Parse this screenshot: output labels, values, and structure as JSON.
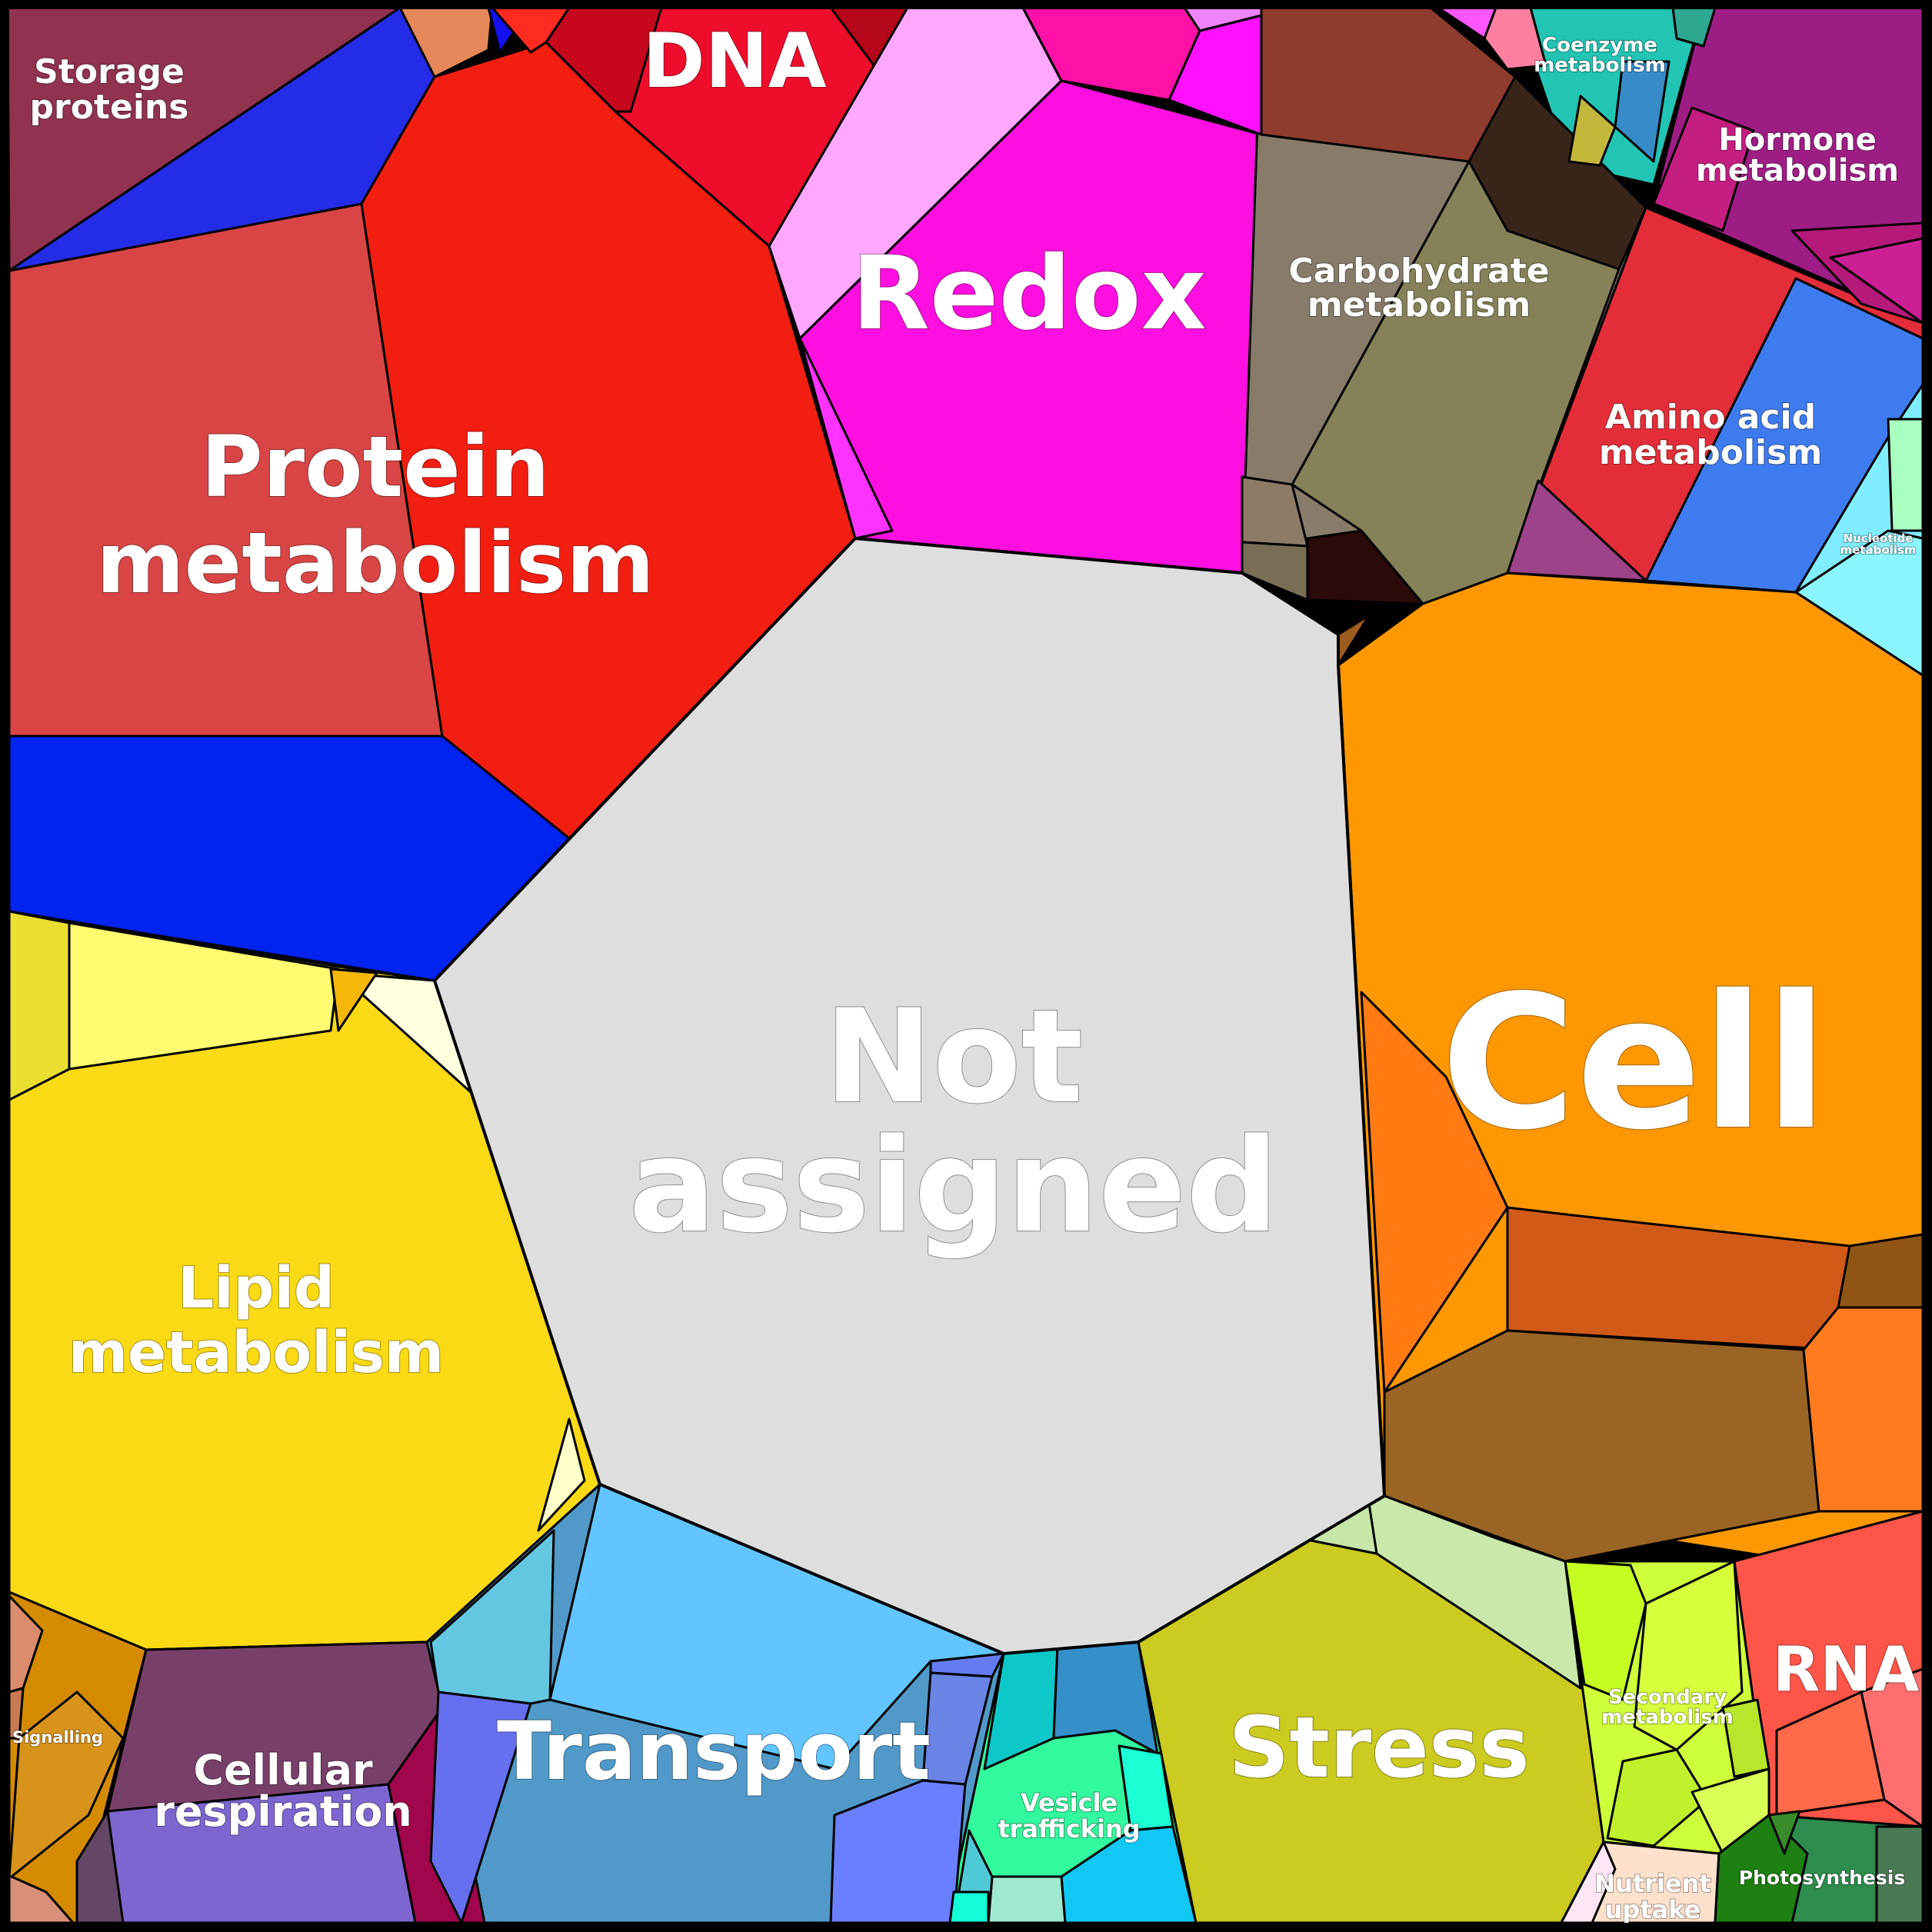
{
  "diagram": {
    "type": "voronoi-treemap",
    "categories": [
      {
        "id": "storage",
        "lines": [
          "Storage",
          "proteins"
        ],
        "color": "#91324F"
      },
      {
        "id": "protein",
        "lines": [
          "Protein",
          "metabolism"
        ],
        "color": "#D94545"
      },
      {
        "id": "dna",
        "lines": [
          "DNA"
        ],
        "color": "#EE0D2B"
      },
      {
        "id": "redox",
        "lines": [
          "Redox"
        ],
        "color": "#FF0FE0"
      },
      {
        "id": "carb",
        "lines": [
          "Carbohydrate",
          "metabolism"
        ],
        "color": "#877B6A"
      },
      {
        "id": "coenzyme",
        "lines": [
          "Coenzyme",
          "metabolism"
        ],
        "color": "#22C4B3"
      },
      {
        "id": "hormone",
        "lines": [
          "Hormone",
          "metabolism"
        ],
        "color": "#9E1D84"
      },
      {
        "id": "aminoacid",
        "lines": [
          "Amino acid",
          "metabolism"
        ],
        "color": "#E32E3A"
      },
      {
        "id": "nucleotide",
        "lines": [
          "Nucleotide",
          "metabolism"
        ],
        "color": "#7FEDFF"
      },
      {
        "id": "cell",
        "lines": [
          "Cell"
        ],
        "color": "#FF9800"
      },
      {
        "id": "notassigned",
        "lines": [
          "Not",
          "assigned"
        ],
        "color": "#DEDEDE"
      },
      {
        "id": "lipid",
        "lines": [
          "Lipid",
          "metabolism"
        ],
        "color": "#FADA14"
      },
      {
        "id": "signalling",
        "lines": [
          "Signalling"
        ],
        "color": "#D48B00"
      },
      {
        "id": "respiration",
        "lines": [
          "Cellular",
          "respiration"
        ],
        "color": "#7D66CF"
      },
      {
        "id": "transport",
        "lines": [
          "Transport"
        ],
        "color": "#5199C8"
      },
      {
        "id": "vesicle",
        "lines": [
          "Vesicle",
          "trafficking"
        ],
        "color": "#33F99E"
      },
      {
        "id": "stress",
        "lines": [
          "Stress"
        ],
        "color": "#CBCB20"
      },
      {
        "id": "secondary",
        "lines": [
          "Secondary",
          "metabolism"
        ],
        "color": "#CDFF3B"
      },
      {
        "id": "rna",
        "lines": [
          "RNA"
        ],
        "color": "#FF5448"
      },
      {
        "id": "nutrient",
        "lines": [
          "Nutrient",
          "uptake"
        ],
        "color": "#FFE0CC"
      },
      {
        "id": "photosynthesis",
        "lines": [
          "Photosynthesis"
        ],
        "color": "#2E8C4F"
      }
    ]
  }
}
